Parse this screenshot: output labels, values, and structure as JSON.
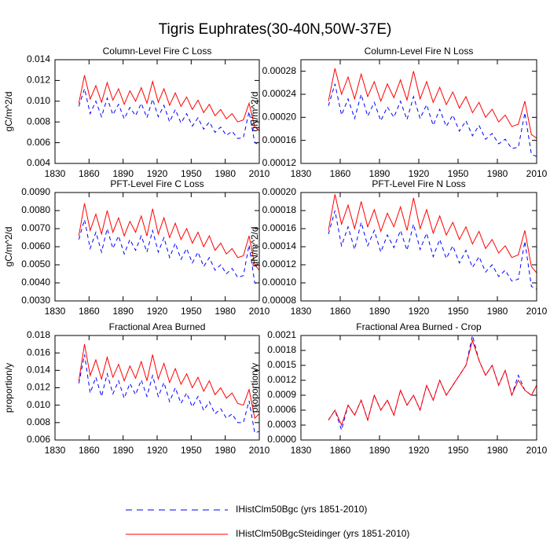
{
  "title": "Tigris Euphrates(30-40N,50W-37E)",
  "chart_data": [
    {
      "type": "line",
      "title": "Column-Level Fire C Loss",
      "ylabel": "gC/m^2/d",
      "x": [
        1851,
        1856,
        1861,
        1866,
        1871,
        1876,
        1881,
        1886,
        1891,
        1896,
        1901,
        1906,
        1911,
        1916,
        1921,
        1926,
        1931,
        1936,
        1941,
        1946,
        1951,
        1956,
        1961,
        1966,
        1971,
        1976,
        1981,
        1986,
        1991,
        1996,
        2001,
        2006,
        2010
      ],
      "xlim": [
        1830,
        2010
      ],
      "xticks": [
        1830,
        1860,
        1890,
        1920,
        1950,
        1980,
        2010
      ],
      "ylim": [
        0.004,
        0.014
      ],
      "yticks": [
        0.004,
        0.006,
        0.008,
        {
          "value": 0.01,
          "label": "0.010"
        },
        0.012,
        0.014
      ],
      "series": [
        {
          "name": "IHistClm50Bgc (yrs 1851-2010)",
          "color": "#0000ff",
          "linestyle": "dashed",
          "values": [
            0.0095,
            0.0112,
            0.0088,
            0.01,
            0.0085,
            0.0103,
            0.0087,
            0.0097,
            0.0083,
            0.0094,
            0.0086,
            0.0098,
            0.0084,
            0.0102,
            0.0085,
            0.0096,
            0.008,
            0.0092,
            0.0079,
            0.0088,
            0.0076,
            0.0084,
            0.0073,
            0.008,
            0.007,
            0.0075,
            0.0067,
            0.0071,
            0.0064,
            0.0065,
            0.009,
            0.006,
            0.0058
          ]
        },
        {
          "name": "IHistClm50BgcSteidinger (yrs 1851-2010)",
          "color": "#ff0000",
          "linestyle": "solid",
          "values": [
            0.0098,
            0.0125,
            0.0102,
            0.0115,
            0.0099,
            0.0118,
            0.0101,
            0.0112,
            0.0097,
            0.011,
            0.01,
            0.0113,
            0.0098,
            0.0119,
            0.0099,
            0.0112,
            0.0096,
            0.0108,
            0.0095,
            0.0104,
            0.0092,
            0.0101,
            0.0089,
            0.0097,
            0.0086,
            0.0092,
            0.0083,
            0.0088,
            0.008,
            0.0082,
            0.0098,
            0.0075,
            0.0072
          ]
        }
      ]
    },
    {
      "type": "line",
      "title": "Column-Level Fire N Loss",
      "ylabel": "gN/m^2/d",
      "x": [
        1851,
        1856,
        1861,
        1866,
        1871,
        1876,
        1881,
        1886,
        1891,
        1896,
        1901,
        1906,
        1911,
        1916,
        1921,
        1926,
        1931,
        1936,
        1941,
        1946,
        1951,
        1956,
        1961,
        1966,
        1971,
        1976,
        1981,
        1986,
        1991,
        1996,
        2001,
        2006,
        2010
      ],
      "xlim": [
        1830,
        2010
      ],
      "xticks": [
        1830,
        1860,
        1890,
        1920,
        1950,
        1980,
        2010
      ],
      "ylim": [
        0.00012,
        0.0003
      ],
      "yticks": [
        0.00012,
        0.00016,
        {
          "value": 0.0002,
          "label": "0.00020"
        },
        0.00024,
        0.00028
      ],
      "series": [
        {
          "name": "IHistClm50Bgc (yrs 1851-2010)",
          "color": "#0000ff",
          "linestyle": "dashed",
          "values": [
            0.00022,
            0.000258,
            0.000204,
            0.000232,
            0.000198,
            0.00024,
            0.000202,
            0.000226,
            0.000194,
            0.000218,
            0.0002,
            0.000228,
            0.000196,
            0.000236,
            0.000198,
            0.000222,
            0.000186,
            0.000214,
            0.000184,
            0.000204,
            0.000176,
            0.000194,
            0.000168,
            0.000186,
            0.000162,
            0.000172,
            0.000154,
            0.000162,
            0.000146,
            0.000148,
            0.000208,
            0.000136,
            0.000132
          ]
        },
        {
          "name": "IHistClm50BgcSteidinger (yrs 1851-2010)",
          "color": "#ff0000",
          "linestyle": "solid",
          "values": [
            0.000228,
            0.000285,
            0.00024,
            0.00027,
            0.000232,
            0.000275,
            0.000236,
            0.000262,
            0.000228,
            0.000258,
            0.000234,
            0.000265,
            0.00023,
            0.00028,
            0.000232,
            0.000262,
            0.000226,
            0.000252,
            0.000222,
            0.000244,
            0.000216,
            0.000236,
            0.000208,
            0.000226,
            0.0002,
            0.000214,
            0.000192,
            0.000204,
            0.000184,
            0.000188,
            0.000228,
            0.00017,
            0.000164
          ]
        }
      ]
    },
    {
      "type": "line",
      "title": "PFT-Level Fire C Loss",
      "ylabel": "gC/m^2/d",
      "x": [
        1851,
        1856,
        1861,
        1866,
        1871,
        1876,
        1881,
        1886,
        1891,
        1896,
        1901,
        1906,
        1911,
        1916,
        1921,
        1926,
        1931,
        1936,
        1941,
        1946,
        1951,
        1956,
        1961,
        1966,
        1971,
        1976,
        1981,
        1986,
        1991,
        1996,
        2001,
        2006,
        2010
      ],
      "xlim": [
        1830,
        2010
      ],
      "xticks": [
        1830,
        1860,
        1890,
        1920,
        1950,
        1980,
        2010
      ],
      "ylim": [
        0.003,
        0.009
      ],
      "yticks": [
        {
          "value": 0.003,
          "label": "0.0030"
        },
        {
          "value": 0.004,
          "label": "0.0040"
        },
        {
          "value": 0.005,
          "label": "0.0050"
        },
        {
          "value": 0.006,
          "label": "0.0060"
        },
        {
          "value": 0.007,
          "label": "0.0070"
        },
        {
          "value": 0.008,
          "label": "0.0080"
        },
        {
          "value": 0.009,
          "label": "0.0090"
        }
      ],
      "series": [
        {
          "name": "IHistClm50Bgc (yrs 1851-2010)",
          "color": "#0000ff",
          "linestyle": "dashed",
          "values": [
            0.0064,
            0.0075,
            0.0059,
            0.0068,
            0.0057,
            0.007,
            0.0059,
            0.0066,
            0.0056,
            0.0064,
            0.0058,
            0.0066,
            0.0057,
            0.0069,
            0.0057,
            0.0065,
            0.0054,
            0.0062,
            0.0053,
            0.0059,
            0.0051,
            0.0057,
            0.0049,
            0.0054,
            0.0047,
            0.005,
            0.0045,
            0.0048,
            0.0043,
            0.0044,
            0.0061,
            0.004,
            0.0039
          ]
        },
        {
          "name": "IHistClm50BgcSteidinger (yrs 1851-2010)",
          "color": "#ff0000",
          "linestyle": "solid",
          "values": [
            0.0066,
            0.0084,
            0.0069,
            0.0078,
            0.0067,
            0.008,
            0.0068,
            0.0076,
            0.0066,
            0.0074,
            0.0068,
            0.0077,
            0.0066,
            0.0081,
            0.0067,
            0.0076,
            0.0065,
            0.0073,
            0.0064,
            0.007,
            0.0062,
            0.0068,
            0.006,
            0.0066,
            0.0058,
            0.0062,
            0.0056,
            0.0059,
            0.0054,
            0.0055,
            0.0066,
            0.005,
            0.0047
          ]
        }
      ]
    },
    {
      "type": "line",
      "title": "PFT-Level Fire N Loss",
      "ylabel": "gN/m^2/d",
      "x": [
        1851,
        1856,
        1861,
        1866,
        1871,
        1876,
        1881,
        1886,
        1891,
        1896,
        1901,
        1906,
        1911,
        1916,
        1921,
        1926,
        1931,
        1936,
        1941,
        1946,
        1951,
        1956,
        1961,
        1966,
        1971,
        1976,
        1981,
        1986,
        1991,
        1996,
        2001,
        2006,
        2010
      ],
      "xlim": [
        1830,
        2010
      ],
      "xticks": [
        1830,
        1860,
        1890,
        1920,
        1950,
        1980,
        2010
      ],
      "ylim": [
        8e-05,
        0.0002
      ],
      "yticks": [
        8e-05,
        {
          "value": 0.0001,
          "label": "0.00010"
        },
        0.00012,
        0.00014,
        0.00016,
        0.00018,
        {
          "value": 0.0002,
          "label": "0.00020"
        }
      ],
      "series": [
        {
          "name": "IHistClm50Bgc (yrs 1851-2010)",
          "color": "#0000ff",
          "linestyle": "dashed",
          "values": [
            0.000154,
            0.00018,
            0.000141,
            0.000162,
            0.000137,
            0.000167,
            0.000141,
            0.000158,
            0.000134,
            0.000153,
            0.000139,
            0.000158,
            0.000136,
            0.000165,
            0.000137,
            0.000155,
            0.000129,
            0.000148,
            0.000127,
            0.000141,
            0.000122,
            0.000136,
            0.000117,
            0.000129,
            0.000112,
            0.00012,
            0.000107,
            0.000114,
            0.000102,
            0.000104,
            0.000146,
            9.6e-05,
            9.3e-05
          ]
        },
        {
          "name": "IHistClm50BgcSteidinger (yrs 1851-2010)",
          "color": "#ff0000",
          "linestyle": "solid",
          "values": [
            0.000158,
            0.000198,
            0.000165,
            0.000186,
            0.00016,
            0.00019,
            0.000162,
            0.000181,
            0.000157,
            0.000177,
            0.000162,
            0.000184,
            0.000158,
            0.000194,
            0.00016,
            0.000181,
            0.000155,
            0.000174,
            0.000153,
            0.000167,
            0.000148,
            0.000162,
            0.000143,
            0.000157,
            0.000138,
            0.000148,
            0.000133,
            0.000141,
            0.000128,
            0.000131,
            0.000158,
            0.000118,
            0.000111
          ]
        }
      ]
    },
    {
      "type": "line",
      "title": "Fractional Area Burned",
      "ylabel": "proportion/y",
      "x": [
        1851,
        1856,
        1861,
        1866,
        1871,
        1876,
        1881,
        1886,
        1891,
        1896,
        1901,
        1906,
        1911,
        1916,
        1921,
        1926,
        1931,
        1936,
        1941,
        1946,
        1951,
        1956,
        1961,
        1966,
        1971,
        1976,
        1981,
        1986,
        1991,
        1996,
        2001,
        2006,
        2010
      ],
      "xlim": [
        1830,
        2010
      ],
      "xticks": [
        1830,
        1860,
        1890,
        1920,
        1950,
        1980,
        2010
      ],
      "ylim": [
        0.006,
        0.018
      ],
      "yticks": [
        0.006,
        0.008,
        {
          "value": 0.01,
          "label": "0.010"
        },
        0.012,
        0.014,
        0.016,
        0.018
      ],
      "series": [
        {
          "name": "IHistClm50Bgc (yrs 1851-2010)",
          "color": "#0000ff",
          "linestyle": "dashed",
          "values": [
            0.0125,
            0.0158,
            0.0114,
            0.0132,
            0.011,
            0.0136,
            0.0113,
            0.0128,
            0.0108,
            0.0125,
            0.0112,
            0.0129,
            0.011,
            0.0134,
            0.011,
            0.0126,
            0.0104,
            0.012,
            0.0102,
            0.0114,
            0.0098,
            0.011,
            0.0094,
            0.0104,
            0.009,
            0.0096,
            0.0085,
            0.009,
            0.008,
            0.008,
            0.0105,
            0.0068,
            0.007
          ]
        },
        {
          "name": "IHistClm50BgcSteidinger (yrs 1851-2010)",
          "color": "#ff0000",
          "linestyle": "solid",
          "values": [
            0.0128,
            0.017,
            0.0134,
            0.0152,
            0.013,
            0.0155,
            0.0132,
            0.0147,
            0.0128,
            0.0145,
            0.0131,
            0.015,
            0.0128,
            0.0158,
            0.013,
            0.0148,
            0.0126,
            0.0142,
            0.0124,
            0.0136,
            0.012,
            0.0132,
            0.0116,
            0.0128,
            0.0112,
            0.012,
            0.0108,
            0.0114,
            0.0102,
            0.01,
            0.0118,
            0.0085,
            0.009
          ]
        }
      ]
    },
    {
      "type": "line",
      "title": "Fractional Area Burned - Crop",
      "ylabel": "proportion/y",
      "x": [
        1851,
        1856,
        1861,
        1866,
        1871,
        1876,
        1881,
        1886,
        1891,
        1896,
        1901,
        1906,
        1911,
        1916,
        1921,
        1926,
        1931,
        1936,
        1941,
        1946,
        1951,
        1956,
        1961,
        1966,
        1971,
        1976,
        1981,
        1986,
        1991,
        1996,
        2001,
        2006,
        2010
      ],
      "xlim": [
        1830,
        2010
      ],
      "xticks": [
        1830,
        1860,
        1890,
        1920,
        1950,
        1980,
        2010
      ],
      "ylim": [
        0,
        0.0021
      ],
      "yticks": [
        {
          "value": 0,
          "label": "0.0000"
        },
        0.0003,
        0.0006,
        0.0009,
        0.0012,
        0.0015,
        0.0018,
        0.0021
      ],
      "series": [
        {
          "name": "IHistClm50Bgc (yrs 1851-2010)",
          "color": "#0000ff",
          "linestyle": "dashed",
          "values": [
            0.0004,
            0.0006,
            0.0002,
            0.0007,
            0.0005,
            0.0008,
            0.0004,
            0.0009,
            0.0006,
            0.0008,
            0.0005,
            0.001,
            0.0007,
            0.0009,
            0.0006,
            0.0011,
            0.0008,
            0.0012,
            0.0009,
            0.0011,
            0.0013,
            0.0015,
            0.0021,
            0.0016,
            0.0013,
            0.0015,
            0.0011,
            0.0014,
            0.0009,
            0.0013,
            0.001,
            0.0009,
            0.0011
          ]
        },
        {
          "name": "IHistClm50BgcSteidinger (yrs 1851-2010)",
          "color": "#ff0000",
          "linestyle": "solid",
          "values": [
            0.0004,
            0.0006,
            0.0003,
            0.0007,
            0.0005,
            0.0008,
            0.0004,
            0.0009,
            0.0006,
            0.0008,
            0.0005,
            0.001,
            0.0007,
            0.0009,
            0.0006,
            0.0011,
            0.0008,
            0.0012,
            0.0009,
            0.0011,
            0.0013,
            0.0015,
            0.002,
            0.0016,
            0.0013,
            0.0015,
            0.0011,
            0.0014,
            0.0009,
            0.0012,
            0.001,
            0.0009,
            0.0011
          ]
        }
      ]
    }
  ]
}
